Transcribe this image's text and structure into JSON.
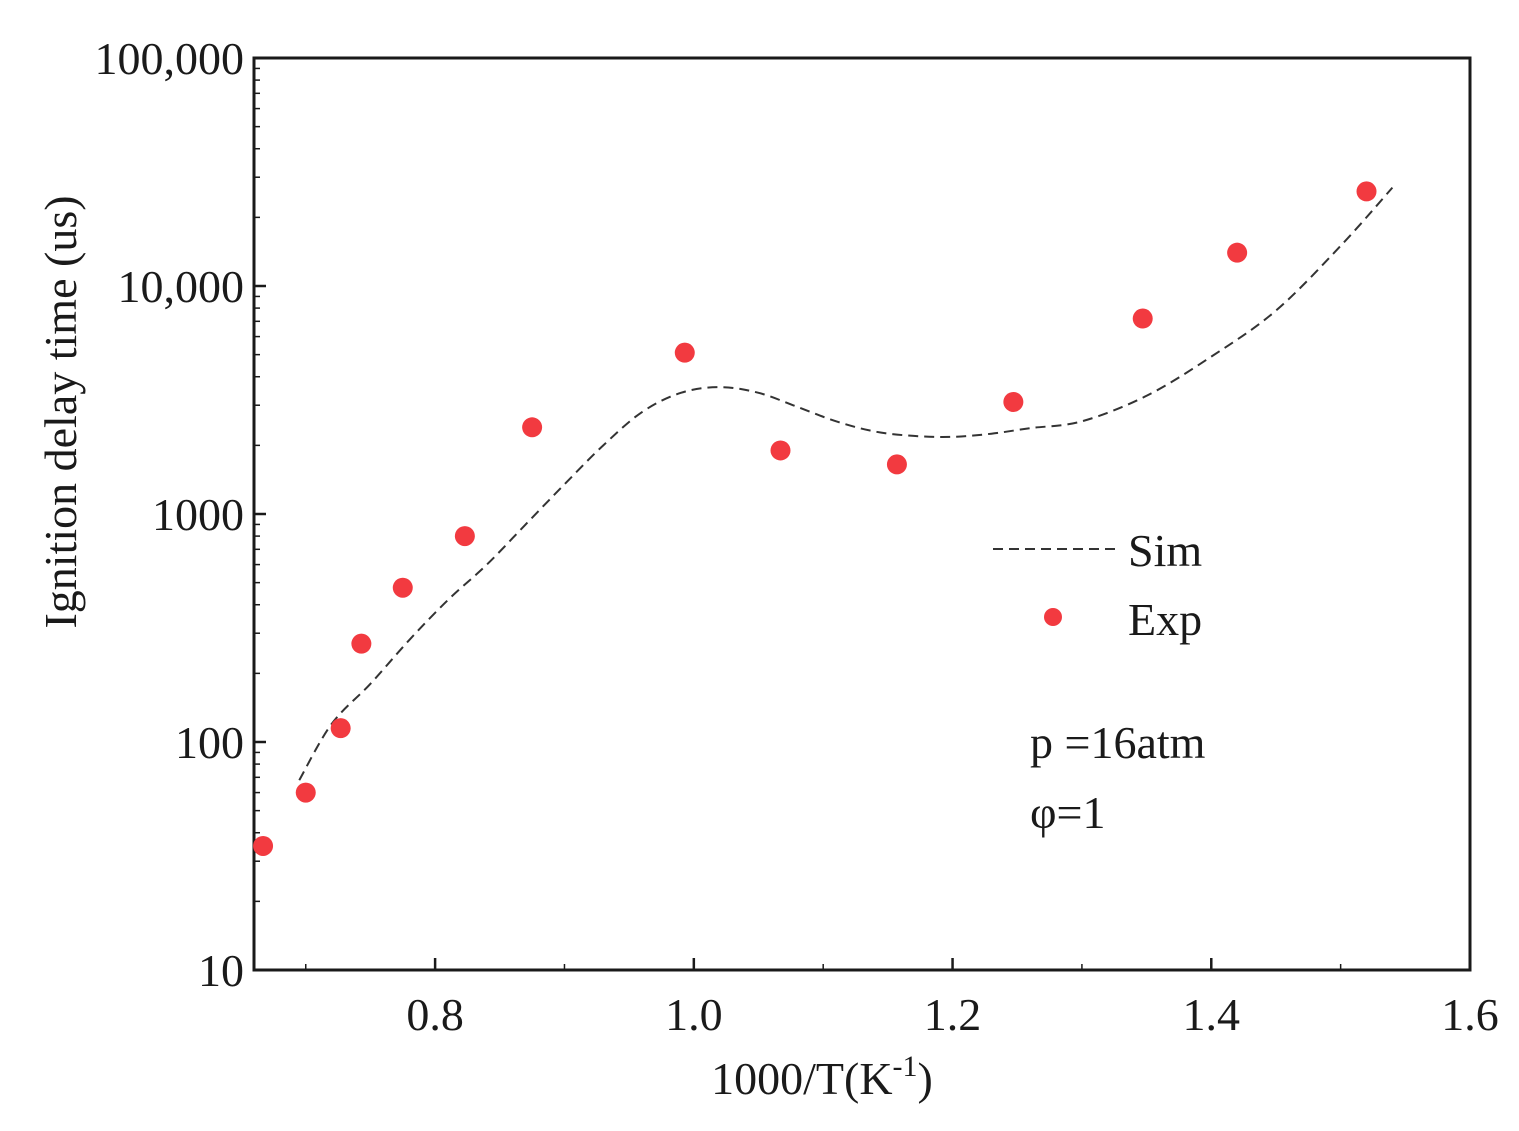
{
  "chart_data": {
    "type": "scatter",
    "xlabel": "1000/T(K",
    "xlabel_sup": "-1",
    "xlabel_tail": ")",
    "ylabel": "Ignition delay time (us)",
    "xlim": [
      0.66,
      1.6
    ],
    "ylim": [
      10,
      100000
    ],
    "yscale": "log",
    "xticks": [
      0.8,
      1.0,
      1.2,
      1.4,
      1.6
    ],
    "xtick_labels": [
      "0.8",
      "1.0",
      "1.2",
      "1.4",
      "1.6"
    ],
    "yticks": [
      10,
      100,
      1000,
      10000,
      100000
    ],
    "ytick_labels": [
      "10",
      "100",
      "1000",
      "10,000",
      "100,000"
    ],
    "legend_position": "right-middle",
    "series": [
      {
        "name": "Sim",
        "kind": "line",
        "style": "dashed",
        "color": "#333333",
        "x": [
          0.695,
          0.72,
          0.75,
          0.78,
          0.81,
          0.84,
          0.87,
          0.9,
          0.93,
          0.96,
          0.99,
          1.02,
          1.05,
          1.08,
          1.11,
          1.14,
          1.17,
          1.2,
          1.23,
          1.26,
          1.3,
          1.35,
          1.4,
          1.45,
          1.5,
          1.54
        ],
        "y": [
          68,
          120,
          180,
          280,
          420,
          600,
          900,
          1350,
          2000,
          2800,
          3400,
          3600,
          3400,
          2950,
          2550,
          2300,
          2200,
          2180,
          2250,
          2380,
          2550,
          3300,
          4900,
          7800,
          15000,
          27000
        ]
      },
      {
        "name": "Exp",
        "kind": "scatter",
        "color": "#f23a40",
        "x": [
          0.667,
          0.7,
          0.727,
          0.743,
          0.775,
          0.823,
          0.875,
          0.993,
          1.067,
          1.157,
          1.247,
          1.347,
          1.42,
          1.52
        ],
        "y": [
          35,
          60,
          115,
          270,
          475,
          800,
          2400,
          5100,
          1900,
          1650,
          3100,
          7200,
          14000,
          26000
        ]
      }
    ],
    "annotations": [
      "p =16atm",
      "φ=1"
    ]
  }
}
